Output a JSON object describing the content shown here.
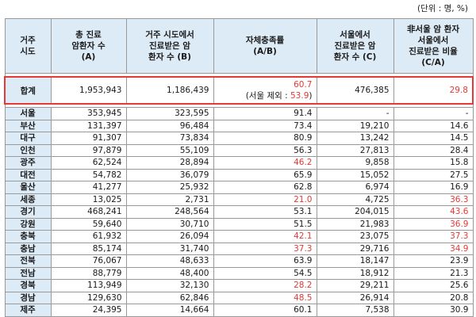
{
  "unit_note": "(단위 : 명, %)",
  "headers": {
    "region": "거주\n시도",
    "total_patients": "총 진료\n암환자 수\n(A)",
    "local_patients": "거주 시도에서\n진료받은 암\n환자 수 (B)",
    "self_sufficiency": "자체충족률\n(A/B)",
    "seoul_patients": "서울에서\n진료받은 암\n환자 수 (C)",
    "non_seoul_ratio": "非서울 암 환자\n서울에서\n진료받은 비율\n(C/A)"
  },
  "total_row": {
    "region": "합계",
    "a": "1,953,943",
    "b": "1,186,439",
    "ratio": "60.7",
    "ratio_note_prefix": "(서울 제외 : ",
    "ratio_note_value": "53.9",
    "ratio_note_suffix": ")",
    "c": "476,385",
    "ca": "29.8"
  },
  "rows": [
    {
      "region": "서울",
      "a": "353,945",
      "b": "323,595",
      "ratio": "91.4",
      "c": "-",
      "ca": "-",
      "ratio_red": false,
      "ca_red": false
    },
    {
      "region": "부산",
      "a": "131,397",
      "b": "96,484",
      "ratio": "73.4",
      "c": "19,210",
      "ca": "14.6",
      "ratio_red": false,
      "ca_red": false
    },
    {
      "region": "대구",
      "a": "91,307",
      "b": "73,834",
      "ratio": "80.9",
      "c": "13,242",
      "ca": "14.5",
      "ratio_red": false,
      "ca_red": false
    },
    {
      "region": "인천",
      "a": "97,879",
      "b": "55,109",
      "ratio": "56.3",
      "c": "27,813",
      "ca": "28.4",
      "ratio_red": false,
      "ca_red": false
    },
    {
      "region": "광주",
      "a": "62,524",
      "b": "28,894",
      "ratio": "46.2",
      "c": "9,858",
      "ca": "15.8",
      "ratio_red": true,
      "ca_red": false
    },
    {
      "region": "대전",
      "a": "54,782",
      "b": "36,079",
      "ratio": "65.9",
      "c": "15,052",
      "ca": "27.5",
      "ratio_red": false,
      "ca_red": false
    },
    {
      "region": "울산",
      "a": "41,277",
      "b": "25,932",
      "ratio": "62.8",
      "c": "6,974",
      "ca": "16.9",
      "ratio_red": false,
      "ca_red": false
    },
    {
      "region": "세종",
      "a": "13,025",
      "b": "2,731",
      "ratio": "21.0",
      "c": "4,725",
      "ca": "36.3",
      "ratio_red": true,
      "ca_red": true
    },
    {
      "region": "경기",
      "a": "468,241",
      "b": "248,564",
      "ratio": "53.1",
      "c": "204,015",
      "ca": "43.6",
      "ratio_red": false,
      "ca_red": true
    },
    {
      "region": "강원",
      "a": "59,640",
      "b": "30,710",
      "ratio": "51.5",
      "c": "21,983",
      "ca": "36.9",
      "ratio_red": false,
      "ca_red": true
    },
    {
      "region": "충북",
      "a": "61,932",
      "b": "26,094",
      "ratio": "42.1",
      "c": "23,075",
      "ca": "37.3",
      "ratio_red": true,
      "ca_red": true
    },
    {
      "region": "충남",
      "a": "85,174",
      "b": "31,740",
      "ratio": "37.3",
      "c": "29,716",
      "ca": "34.9",
      "ratio_red": true,
      "ca_red": true
    },
    {
      "region": "전북",
      "a": "76,067",
      "b": "48,633",
      "ratio": "63.9",
      "c": "18,147",
      "ca": "23.9",
      "ratio_red": false,
      "ca_red": false
    },
    {
      "region": "전남",
      "a": "88,779",
      "b": "48,400",
      "ratio": "54.5",
      "c": "18,912",
      "ca": "21.3",
      "ratio_red": false,
      "ca_red": false
    },
    {
      "region": "경북",
      "a": "113,949",
      "b": "32,130",
      "ratio": "28.2",
      "c": "29,211",
      "ca": "25.6",
      "ratio_red": true,
      "ca_red": false
    },
    {
      "region": "경남",
      "a": "129,630",
      "b": "62,846",
      "ratio": "48.5",
      "c": "26,914",
      "ca": "20.8",
      "ratio_red": true,
      "ca_red": false
    },
    {
      "region": "제주",
      "a": "24,395",
      "b": "14,664",
      "ratio": "60.1",
      "c": "7,538",
      "ca": "30.9",
      "ratio_red": false,
      "ca_red": false
    }
  ],
  "colors": {
    "header_bg": "#ddebf7",
    "highlight_red": "#e53935",
    "border": "#999999"
  }
}
